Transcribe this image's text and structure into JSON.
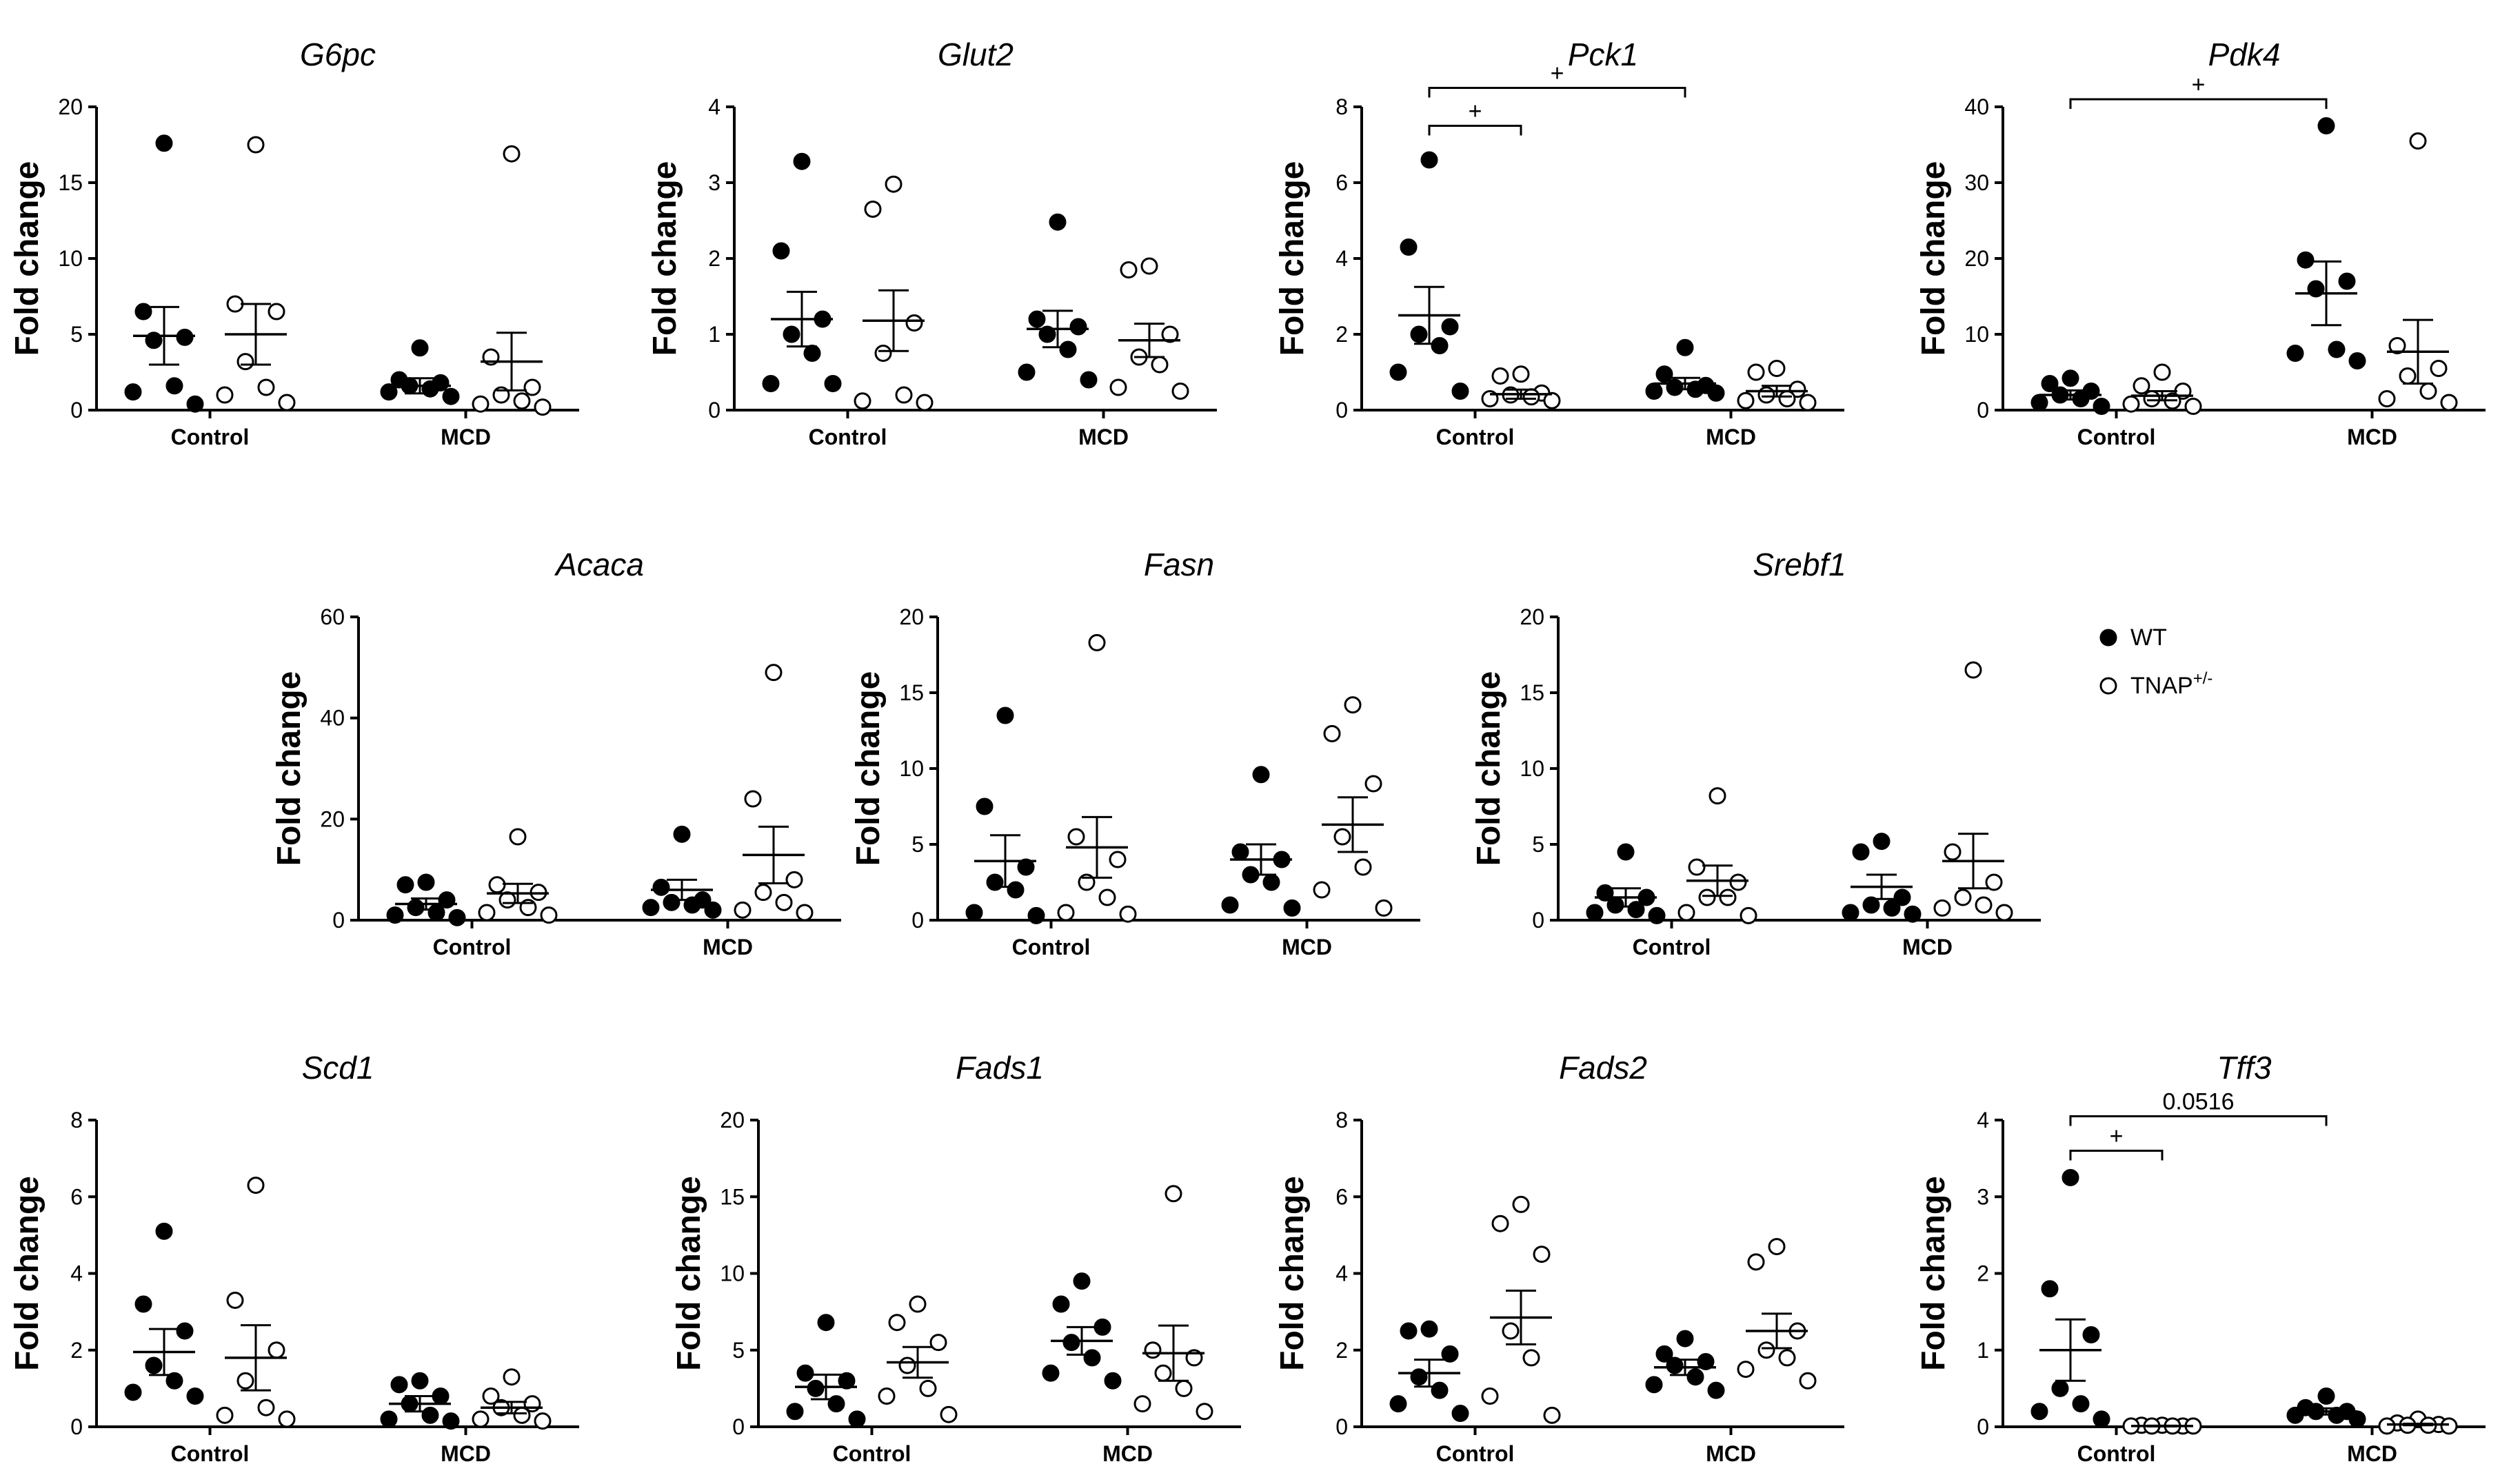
{
  "legend": {
    "items": [
      {
        "label": "WT",
        "marker": "filled-circle"
      },
      {
        "label": "TNAP",
        "superscript": "+/-",
        "marker": "open-circle"
      }
    ]
  },
  "colors": {
    "marker": "#000000",
    "open_fill": "#ffffff"
  },
  "chart_data": [
    {
      "type": "scatter",
      "title": "G6pc",
      "ylabel": "Fold change",
      "ylim": [
        0,
        20
      ],
      "yticks": [
        0,
        5,
        10,
        15,
        20
      ],
      "categories": [
        "Control",
        "MCD"
      ],
      "groups": [
        {
          "category": "Control",
          "genotype": "WT",
          "values": [
            17.6,
            6.5,
            4.8,
            4.6,
            1.6,
            1.2,
            0.4
          ],
          "mean": 4.9,
          "sem": 1.9
        },
        {
          "category": "Control",
          "genotype": "TNAP+/-",
          "values": [
            17.5,
            7.0,
            6.5,
            3.2,
            1.5,
            1.0,
            0.5
          ],
          "mean": 5.0,
          "sem": 2.0
        },
        {
          "category": "MCD",
          "genotype": "WT",
          "values": [
            4.1,
            2.0,
            1.8,
            1.6,
            1.4,
            1.2,
            0.9
          ],
          "mean": 1.6,
          "sem": 0.5
        },
        {
          "category": "MCD",
          "genotype": "TNAP+/-",
          "values": [
            16.9,
            3.5,
            1.5,
            1.0,
            0.6,
            0.4,
            0.2
          ],
          "mean": 3.2,
          "sem": 1.9
        }
      ],
      "annotations": []
    },
    {
      "type": "scatter",
      "title": "Glut2",
      "ylabel": "Fold change",
      "ylim": [
        0,
        4
      ],
      "yticks": [
        0,
        1,
        2,
        3,
        4
      ],
      "categories": [
        "Control",
        "MCD"
      ],
      "groups": [
        {
          "category": "Control",
          "genotype": "WT",
          "values": [
            3.28,
            2.1,
            1.2,
            1.0,
            0.75,
            0.35,
            0.35
          ],
          "mean": 1.2,
          "sem": 0.36
        },
        {
          "category": "Control",
          "genotype": "TNAP+/-",
          "values": [
            2.98,
            2.65,
            1.15,
            0.75,
            0.2,
            0.12,
            0.1
          ],
          "mean": 1.18,
          "sem": 0.4
        },
        {
          "category": "MCD",
          "genotype": "WT",
          "values": [
            2.48,
            1.2,
            1.1,
            1.0,
            0.8,
            0.5,
            0.4
          ],
          "mean": 1.07,
          "sem": 0.24
        },
        {
          "category": "MCD",
          "genotype": "TNAP+/-",
          "values": [
            1.9,
            1.85,
            1.0,
            0.7,
            0.6,
            0.3,
            0.25
          ],
          "mean": 0.92,
          "sem": 0.22
        }
      ],
      "annotations": []
    },
    {
      "type": "scatter",
      "title": "Pck1",
      "ylabel": "Fold change",
      "ylim": [
        0,
        8
      ],
      "yticks": [
        0,
        2,
        4,
        6,
        8
      ],
      "categories": [
        "Control",
        "MCD"
      ],
      "groups": [
        {
          "category": "Control",
          "genotype": "WT",
          "values": [
            6.6,
            4.3,
            2.2,
            2.0,
            1.7,
            1.0,
            0.5
          ],
          "mean": 2.5,
          "sem": 0.75
        },
        {
          "category": "Control",
          "genotype": "TNAP+/-",
          "values": [
            0.95,
            0.9,
            0.45,
            0.4,
            0.35,
            0.3,
            0.25
          ],
          "mean": 0.42,
          "sem": 0.12
        },
        {
          "category": "MCD",
          "genotype": "WT",
          "values": [
            1.65,
            0.95,
            0.65,
            0.6,
            0.55,
            0.5,
            0.45
          ],
          "mean": 0.7,
          "sem": 0.15
        },
        {
          "category": "MCD",
          "genotype": "TNAP+/-",
          "values": [
            1.1,
            1.0,
            0.55,
            0.4,
            0.3,
            0.25,
            0.2
          ],
          "mean": 0.5,
          "sem": 0.14
        }
      ],
      "annotations": [
        {
          "text": "+",
          "from": [
            0,
            "WT"
          ],
          "to": [
            0,
            "TNAP+/-"
          ],
          "level": 7.5
        },
        {
          "text": "+",
          "from": [
            0,
            "WT"
          ],
          "to": [
            1,
            "WT"
          ],
          "level": 8.5
        }
      ]
    },
    {
      "type": "scatter",
      "title": "Pdk4",
      "ylabel": "Fold change",
      "ylim": [
        0,
        40
      ],
      "yticks": [
        0,
        10,
        20,
        30,
        40
      ],
      "categories": [
        "Control",
        "MCD"
      ],
      "groups": [
        {
          "category": "Control",
          "genotype": "WT",
          "values": [
            4.2,
            3.5,
            2.5,
            2.0,
            1.5,
            1.0,
            0.5
          ],
          "mean": 2.0,
          "sem": 0.6
        },
        {
          "category": "Control",
          "genotype": "TNAP+/-",
          "values": [
            5.0,
            3.2,
            2.5,
            1.5,
            1.2,
            0.8,
            0.5
          ],
          "mean": 1.9,
          "sem": 0.6
        },
        {
          "category": "MCD",
          "genotype": "WT",
          "values": [
            37.5,
            19.8,
            17.0,
            16.0,
            8.0,
            7.5,
            6.5
          ],
          "mean": 15.4,
          "sem": 4.2
        },
        {
          "category": "MCD",
          "genotype": "TNAP+/-",
          "values": [
            35.5,
            8.5,
            5.5,
            4.5,
            2.5,
            1.5,
            1.0
          ],
          "mean": 7.7,
          "sem": 4.2
        }
      ],
      "annotations": [
        {
          "text": "+",
          "from": [
            0,
            "WT"
          ],
          "to": [
            1,
            "WT"
          ],
          "level": 41
        }
      ]
    },
    {
      "type": "scatter",
      "title": "Acaca",
      "ylabel": "Fold change",
      "ylim": [
        0,
        60
      ],
      "yticks": [
        0,
        20,
        40,
        60
      ],
      "categories": [
        "Control",
        "MCD"
      ],
      "groups": [
        {
          "category": "Control",
          "genotype": "WT",
          "values": [
            7.5,
            7.0,
            4.0,
            2.5,
            1.5,
            1.0,
            0.5
          ],
          "mean": 3.2,
          "sem": 1.1
        },
        {
          "category": "Control",
          "genotype": "TNAP+/-",
          "values": [
            16.5,
            7.0,
            5.5,
            4.0,
            2.5,
            1.5,
            1.0
          ],
          "mean": 5.3,
          "sem": 1.9
        },
        {
          "category": "MCD",
          "genotype": "WT",
          "values": [
            17.0,
            6.5,
            4.0,
            3.5,
            3.0,
            2.5,
            2.0
          ],
          "mean": 6.0,
          "sem": 2.0
        },
        {
          "category": "MCD",
          "genotype": "TNAP+/-",
          "values": [
            49.0,
            24.0,
            8.0,
            5.5,
            3.5,
            2.0,
            1.5
          ],
          "mean": 12.9,
          "sem": 5.6
        }
      ],
      "annotations": []
    },
    {
      "type": "scatter",
      "title": "Fasn",
      "ylabel": "Fold change",
      "ylim": [
        0,
        20
      ],
      "yticks": [
        0,
        5,
        10,
        15,
        20
      ],
      "categories": [
        "Control",
        "MCD"
      ],
      "groups": [
        {
          "category": "Control",
          "genotype": "WT",
          "values": [
            13.5,
            7.5,
            3.5,
            2.5,
            2.0,
            0.5,
            0.3
          ],
          "mean": 3.9,
          "sem": 1.7
        },
        {
          "category": "Control",
          "genotype": "TNAP+/-",
          "values": [
            18.3,
            5.5,
            4.0,
            2.5,
            1.5,
            0.5,
            0.4
          ],
          "mean": 4.8,
          "sem": 2.0
        },
        {
          "category": "MCD",
          "genotype": "WT",
          "values": [
            9.6,
            4.5,
            4.0,
            3.0,
            2.5,
            1.0,
            0.8
          ],
          "mean": 4.0,
          "sem": 1.0
        },
        {
          "category": "MCD",
          "genotype": "TNAP+/-",
          "values": [
            14.2,
            12.3,
            9.0,
            5.5,
            3.5,
            2.0,
            0.8
          ],
          "mean": 6.3,
          "sem": 1.8
        }
      ],
      "annotations": []
    },
    {
      "type": "scatter",
      "title": "Srebf1",
      "ylabel": "Fold change",
      "ylim": [
        0,
        20
      ],
      "yticks": [
        0,
        5,
        10,
        15,
        20
      ],
      "categories": [
        "Control",
        "MCD"
      ],
      "groups": [
        {
          "category": "Control",
          "genotype": "WT",
          "values": [
            4.5,
            1.8,
            1.5,
            1.0,
            0.7,
            0.5,
            0.3
          ],
          "mean": 1.5,
          "sem": 0.6
        },
        {
          "category": "Control",
          "genotype": "TNAP+/-",
          "values": [
            8.2,
            3.5,
            2.5,
            1.5,
            1.5,
            0.5,
            0.3
          ],
          "mean": 2.6,
          "sem": 1.0
        },
        {
          "category": "MCD",
          "genotype": "WT",
          "values": [
            5.2,
            4.5,
            1.5,
            1.0,
            0.8,
            0.5,
            0.4
          ],
          "mean": 2.2,
          "sem": 0.8
        },
        {
          "category": "MCD",
          "genotype": "TNAP+/-",
          "values": [
            16.5,
            4.5,
            2.5,
            1.5,
            1.0,
            0.8,
            0.5
          ],
          "mean": 3.9,
          "sem": 1.8
        }
      ],
      "annotations": []
    },
    {
      "type": "scatter",
      "title": "Scd1",
      "ylabel": "Fold change",
      "ylim": [
        0,
        8
      ],
      "yticks": [
        0,
        2,
        4,
        6,
        8
      ],
      "categories": [
        "Control",
        "MCD"
      ],
      "groups": [
        {
          "category": "Control",
          "genotype": "WT",
          "values": [
            5.1,
            3.2,
            2.5,
            1.6,
            1.2,
            0.9,
            0.8
          ],
          "mean": 1.95,
          "sem": 0.6
        },
        {
          "category": "Control",
          "genotype": "TNAP+/-",
          "values": [
            6.3,
            3.3,
            2.0,
            1.2,
            0.5,
            0.3,
            0.2
          ],
          "mean": 1.8,
          "sem": 0.85
        },
        {
          "category": "MCD",
          "genotype": "WT",
          "values": [
            1.2,
            1.1,
            0.8,
            0.6,
            0.3,
            0.2,
            0.15
          ],
          "mean": 0.6,
          "sem": 0.2
        },
        {
          "category": "MCD",
          "genotype": "TNAP+/-",
          "values": [
            1.3,
            0.8,
            0.6,
            0.5,
            0.3,
            0.2,
            0.15
          ],
          "mean": 0.5,
          "sem": 0.15
        }
      ],
      "annotations": []
    },
    {
      "type": "scatter",
      "title": "Fads1",
      "ylabel": "Fold change",
      "ylim": [
        0,
        20
      ],
      "yticks": [
        0,
        5,
        10,
        15,
        20
      ],
      "categories": [
        "Control",
        "MCD"
      ],
      "groups": [
        {
          "category": "Control",
          "genotype": "WT",
          "values": [
            6.8,
            3.5,
            3.0,
            2.5,
            1.5,
            1.0,
            0.5
          ],
          "mean": 2.6,
          "sem": 0.8
        },
        {
          "category": "Control",
          "genotype": "TNAP+/-",
          "values": [
            8.0,
            6.8,
            5.5,
            4.0,
            2.5,
            2.0,
            0.8
          ],
          "mean": 4.2,
          "sem": 1.0
        },
        {
          "category": "MCD",
          "genotype": "WT",
          "values": [
            9.5,
            8.0,
            6.5,
            5.5,
            4.5,
            3.5,
            3.0
          ],
          "mean": 5.6,
          "sem": 0.9
        },
        {
          "category": "MCD",
          "genotype": "TNAP+/-",
          "values": [
            15.2,
            5.0,
            4.5,
            3.5,
            2.5,
            1.5,
            1.0
          ],
          "mean": 4.8,
          "sem": 1.8
        }
      ],
      "annotations": []
    },
    {
      "type": "scatter",
      "title": "Fads2",
      "ylabel": "Fold change",
      "ylim": [
        0,
        8
      ],
      "yticks": [
        0,
        2,
        4,
        6,
        8
      ],
      "categories": [
        "Control",
        "MCD"
      ],
      "groups": [
        {
          "category": "Control",
          "genotype": "WT",
          "values": [
            2.55,
            2.5,
            1.9,
            1.3,
            0.95,
            0.6,
            0.35
          ],
          "mean": 1.4,
          "sem": 0.35
        },
        {
          "category": "Control",
          "genotype": "TNAP+/-",
          "values": [
            5.8,
            5.3,
            4.5,
            2.5,
            1.8,
            0.8,
            0.3
          ],
          "mean": 2.85,
          "sem": 0.7
        },
        {
          "category": "MCD",
          "genotype": "WT",
          "values": [
            2.3,
            1.9,
            1.7,
            1.6,
            1.3,
            1.1,
            0.95
          ],
          "mean": 1.55,
          "sem": 0.2
        },
        {
          "category": "MCD",
          "genotype": "TNAP+/-",
          "values": [
            4.7,
            4.3,
            2.5,
            2.0,
            1.8,
            1.5,
            1.2
          ],
          "mean": 2.5,
          "sem": 0.45
        }
      ],
      "annotations": []
    },
    {
      "type": "scatter",
      "title": "Tff3",
      "ylabel": "Fold change",
      "ylim": [
        0,
        4
      ],
      "yticks": [
        0,
        1,
        2,
        3,
        4
      ],
      "categories": [
        "Control",
        "MCD"
      ],
      "groups": [
        {
          "category": "Control",
          "genotype": "WT",
          "values": [
            3.25,
            1.8,
            1.2,
            0.5,
            0.3,
            0.2,
            0.1
          ],
          "mean": 1.0,
          "sem": 0.4
        },
        {
          "category": "Control",
          "genotype": "TNAP+/-",
          "values": [
            0.02,
            0.02,
            0.01,
            0.01,
            0.01,
            0.01,
            0.01
          ],
          "mean": 0.01,
          "sem": 0.005
        },
        {
          "category": "MCD",
          "genotype": "WT",
          "values": [
            0.4,
            0.25,
            0.2,
            0.2,
            0.15,
            0.15,
            0.1
          ],
          "mean": 0.2,
          "sem": 0.04
        },
        {
          "category": "MCD",
          "genotype": "TNAP+/-",
          "values": [
            0.1,
            0.05,
            0.03,
            0.02,
            0.02,
            0.01,
            0.01
          ],
          "mean": 0.03,
          "sem": 0.01
        }
      ],
      "annotations": [
        {
          "text": "+",
          "from": [
            0,
            "WT"
          ],
          "to": [
            0,
            "TNAP+/-"
          ],
          "level": 3.6
        },
        {
          "text": "0.0516",
          "from": [
            0,
            "WT"
          ],
          "to": [
            1,
            "WT"
          ],
          "level": 4.05
        }
      ]
    }
  ]
}
